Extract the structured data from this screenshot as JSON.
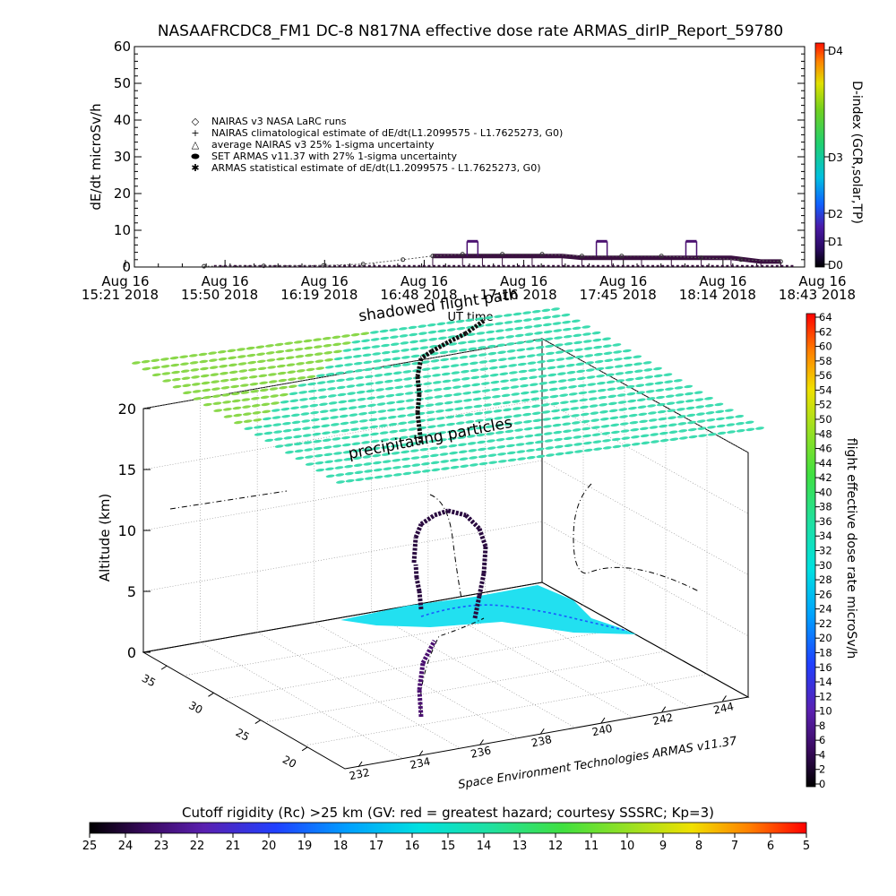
{
  "title": "NASAAFRCDC8_FM1 DC-8    N817NA effective dose rate ARMAS_dirIP_Report_59780",
  "top_chart": {
    "ylabel": "dE/dt microSv/h",
    "xlabel": "UT time",
    "yticks": [
      "0",
      "10",
      "20",
      "30",
      "40",
      "50",
      "60"
    ],
    "xticks": [
      {
        "day": "Aug 16",
        "time": "15:21 2018"
      },
      {
        "day": "Aug 16",
        "time": "15:50 2018"
      },
      {
        "day": "Aug 16",
        "time": "16:19 2018"
      },
      {
        "day": "Aug 16",
        "time": "16:48 2018"
      },
      {
        "day": "Aug 16",
        "time": "17:16 2018"
      },
      {
        "day": "Aug 16",
        "time": "17:45 2018"
      },
      {
        "day": "Aug 16",
        "time": "18:14 2018"
      },
      {
        "day": "Aug 16",
        "time": "18:43 2018"
      }
    ],
    "legend": [
      {
        "symbol": "◇",
        "text": "NAIRAS v3 NASA LaRC runs"
      },
      {
        "symbol": "+",
        "text": "NAIRAS climatological estimate of dE/dt(L1.2099575 - L1.7625273, G0)"
      },
      {
        "symbol": "△",
        "text": "average NAIRAS v3 25% 1-sigma uncertainty"
      },
      {
        "symbol": "⬬",
        "text": "SET ARMAS v11.37 with 27% 1-sigma uncertainty"
      },
      {
        "symbol": "✱",
        "text": "ARMAS statistical estimate of dE/dt(L1.2099575 - L1.7625273, G0)"
      }
    ],
    "dindex_label": "D-index (GCR,solar,TP)",
    "dindex_ticks": [
      "D4",
      "D3",
      "D2",
      "D1",
      "D0"
    ],
    "overlay_text_1": "shadowed flight path",
    "overlay_text_2": "UT time"
  },
  "bottom_chart": {
    "zlabel": "Altitude (km)",
    "zticks": [
      "0",
      "5",
      "10",
      "15",
      "20"
    ],
    "lat_ticks": [
      "35",
      "30",
      "25",
      "20"
    ],
    "lon_ticks": [
      "232",
      "234",
      "236",
      "238",
      "240",
      "242",
      "244"
    ],
    "plane_label": "precipitating particles",
    "credit": "Space Environment Technologies ARMAS v11.37",
    "colorbar_label": "flight effective dose rate microSv/h",
    "colorbar_ticks": [
      "0",
      "2",
      "4",
      "6",
      "8",
      "10",
      "12",
      "14",
      "16",
      "18",
      "20",
      "22",
      "24",
      "26",
      "28",
      "30",
      "32",
      "34",
      "36",
      "38",
      "40",
      "42",
      "44",
      "46",
      "48",
      "50",
      "52",
      "54",
      "56",
      "58",
      "60",
      "62",
      "64"
    ]
  },
  "bottom_colorbar": {
    "title": "Cutoff rigidity (Rc) >25 km (GV: red = greatest hazard; courtesy SSSRC; Kp=3)",
    "ticks": [
      "25",
      "24",
      "23",
      "22",
      "21",
      "20",
      "19",
      "18",
      "17",
      "16",
      "15",
      "14",
      "13",
      "12",
      "11",
      "10",
      "9",
      "8",
      "7",
      "6",
      "5"
    ]
  },
  "chart_data": {
    "type": "line",
    "x_unit": "UT hour",
    "x_range_hours": [
      15.35,
      18.72
    ],
    "ylim": [
      0,
      60
    ],
    "series": [
      {
        "name": "SET ARMAS v11.37 with 27% 1-sigma uncertainty",
        "x": [
          16.85,
          17.0,
          17.1,
          17.2,
          17.35,
          17.5,
          17.6,
          17.75,
          17.9,
          18.05,
          18.2,
          18.35,
          18.5,
          18.6
        ],
        "y": [
          3,
          3,
          3,
          3,
          3,
          3,
          2.5,
          2.5,
          2.5,
          2.5,
          2.5,
          2.5,
          1.5,
          1.5
        ]
      },
      {
        "name": "NAIRAS v3 NASA LaRC runs",
        "x": [
          15.7,
          16.0,
          16.3,
          16.5,
          16.7,
          16.85,
          17.0,
          17.2,
          17.4,
          17.6,
          17.8,
          18.0,
          18.2,
          18.4,
          18.6
        ],
        "y": [
          0.2,
          0.3,
          0.4,
          0.8,
          2.0,
          3.0,
          3.5,
          3.5,
          3.5,
          3.0,
          3.0,
          3.0,
          2.5,
          2.0,
          1.5
        ]
      },
      {
        "name": "ARMAS statistical estimate of dE/dt(L1.2099575 - L1.7625273, G0)",
        "x": [
          17.05,
          17.7,
          18.15
        ],
        "y": [
          7,
          7,
          7
        ]
      }
    ],
    "altitude_km_range": [
      0,
      20
    ],
    "dose_rate_range_microSv_h": [
      0,
      64
    ],
    "cutoff_rigidity_GV_range": [
      25,
      5
    ]
  },
  "colors": {
    "series_dark": "#3a1040",
    "overlay_cyan": "#22e0f0",
    "plane_green": "#3ddc8a"
  }
}
